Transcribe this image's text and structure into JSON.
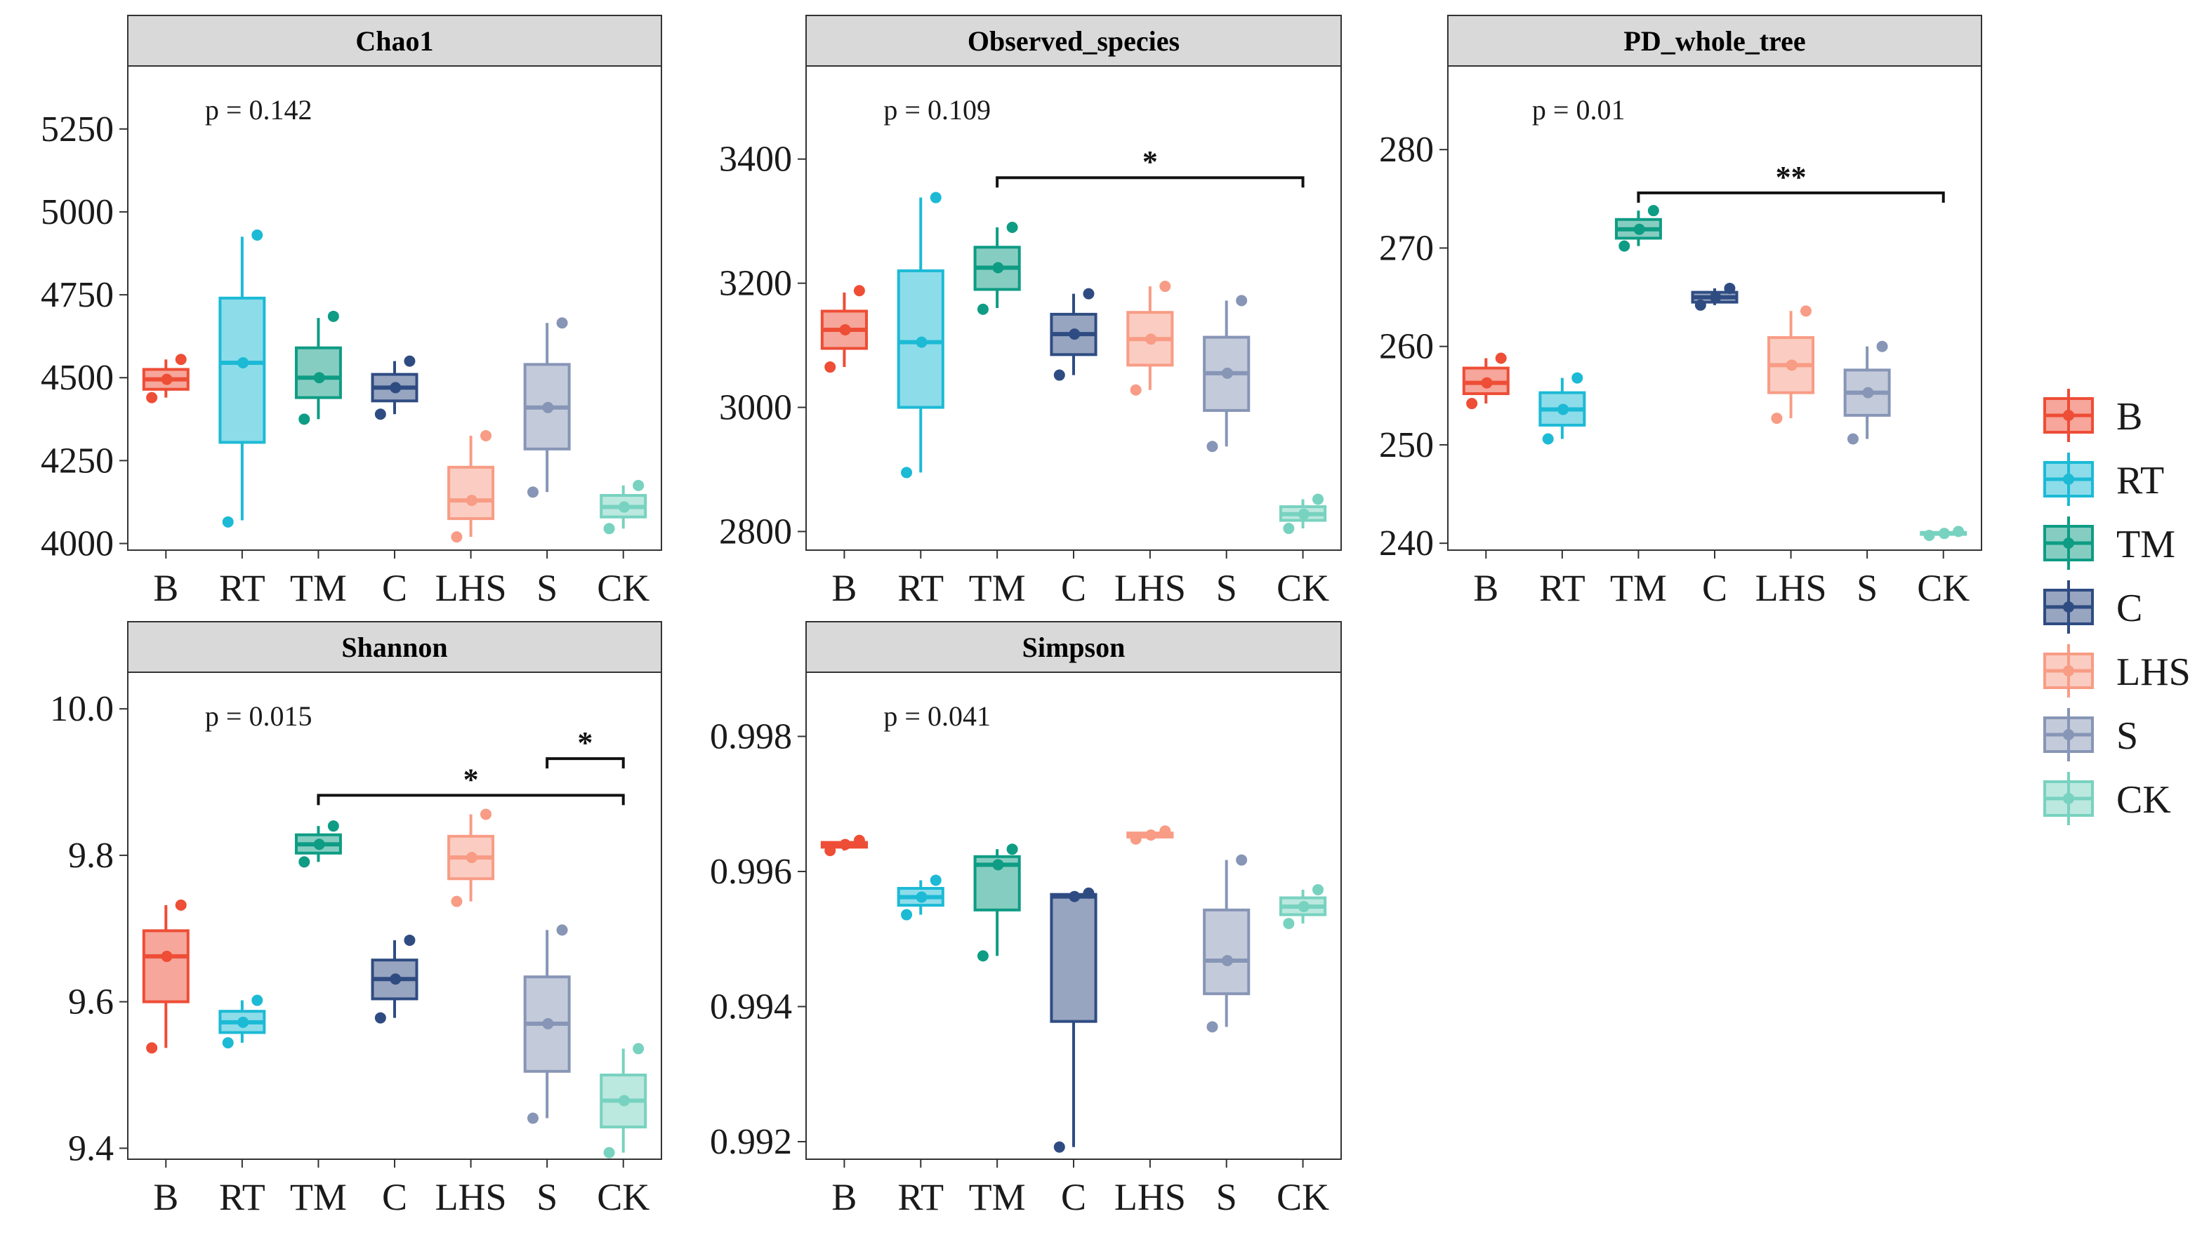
{
  "chart_data": [
    {
      "type": "box",
      "title": "Chao1",
      "categories": [
        "B",
        "RT",
        "TM",
        "C",
        "LHS",
        "S",
        "CK"
      ],
      "ylim": [
        3980,
        5440
      ],
      "yticks": [
        4000,
        4250,
        4500,
        4750,
        5000,
        5250
      ],
      "ytick_labels": [
        "4000",
        "4250",
        "4500",
        "4750",
        "5000",
        "5250"
      ],
      "annotation": "p = 0.142",
      "boxes": [
        {
          "min": 4440,
          "q1": 4465,
          "median": 4495,
          "q3": 4525,
          "max": 4555,
          "points": [
            4440,
            4495,
            4555
          ]
        },
        {
          "min": 4070,
          "q1": 4305,
          "median": 4545,
          "q3": 4740,
          "max": 4925,
          "points": [
            4065,
            4545,
            4930
          ]
        },
        {
          "min": 4375,
          "q1": 4440,
          "median": 4500,
          "q3": 4590,
          "max": 4680,
          "points": [
            4375,
            4500,
            4685
          ]
        },
        {
          "min": 4390,
          "q1": 4430,
          "median": 4470,
          "q3": 4510,
          "max": 4550,
          "points": [
            4390,
            4470,
            4550
          ]
        },
        {
          "min": 4020,
          "q1": 4075,
          "median": 4130,
          "q3": 4230,
          "max": 4325,
          "points": [
            4020,
            4130,
            4325
          ]
        },
        {
          "min": 4155,
          "q1": 4285,
          "median": 4410,
          "q3": 4540,
          "max": 4665,
          "points": [
            4155,
            4410,
            4665
          ]
        },
        {
          "min": 4045,
          "q1": 4080,
          "median": 4110,
          "q3": 4145,
          "max": 4175,
          "points": [
            4045,
            4110,
            4175
          ]
        }
      ],
      "brackets": []
    },
    {
      "type": "box",
      "title": "Observed_species",
      "categories": [
        "B",
        "RT",
        "TM",
        "C",
        "LHS",
        "S",
        "CK"
      ],
      "ylim": [
        2770,
        3550
      ],
      "yticks": [
        2800,
        3000,
        3200,
        3400
      ],
      "ytick_labels": [
        "2800",
        "3000",
        "3200",
        "3400"
      ],
      "annotation": "p = 0.109",
      "boxes": [
        {
          "min": 3065,
          "q1": 3095,
          "median": 3125,
          "q3": 3155,
          "max": 3185,
          "points": [
            3065,
            3125,
            3188
          ]
        },
        {
          "min": 2895,
          "q1": 3000,
          "median": 3105,
          "q3": 3220,
          "max": 3338,
          "points": [
            2895,
            3105,
            3338
          ]
        },
        {
          "min": 3160,
          "q1": 3190,
          "median": 3225,
          "q3": 3258,
          "max": 3290,
          "points": [
            3158,
            3225,
            3290
          ]
        },
        {
          "min": 3052,
          "q1": 3085,
          "median": 3118,
          "q3": 3150,
          "max": 3183,
          "points": [
            3052,
            3118,
            3183
          ]
        },
        {
          "min": 3028,
          "q1": 3068,
          "median": 3110,
          "q3": 3153,
          "max": 3195,
          "points": [
            3028,
            3110,
            3195
          ]
        },
        {
          "min": 2937,
          "q1": 2995,
          "median": 3055,
          "q3": 3113,
          "max": 3172,
          "points": [
            2937,
            3055,
            3172
          ]
        },
        {
          "min": 2805,
          "q1": 2818,
          "median": 2828,
          "q3": 2840,
          "max": 2852,
          "points": [
            2805,
            2828,
            2852
          ]
        }
      ],
      "brackets": [
        {
          "from": "TM",
          "to": "CK",
          "y": 3370,
          "label": "*"
        }
      ]
    },
    {
      "type": "box",
      "title": "PD_whole_tree",
      "categories": [
        "B",
        "RT",
        "TM",
        "C",
        "LHS",
        "S",
        "CK"
      ],
      "ylim": [
        239.3,
        288.5
      ],
      "yticks": [
        240,
        250,
        260,
        270,
        280
      ],
      "ytick_labels": [
        "240",
        "250",
        "260",
        "270",
        "280"
      ],
      "annotation": "p = 0.01",
      "boxes": [
        {
          "min": 254.2,
          "q1": 255.2,
          "median": 256.3,
          "q3": 257.8,
          "max": 258.8,
          "points": [
            254.2,
            256.3,
            258.8
          ]
        },
        {
          "min": 250.6,
          "q1": 252.0,
          "median": 253.6,
          "q3": 255.3,
          "max": 256.8,
          "points": [
            250.6,
            253.6,
            256.8
          ]
        },
        {
          "min": 270.2,
          "q1": 271.0,
          "median": 271.9,
          "q3": 272.9,
          "max": 273.8,
          "points": [
            270.2,
            271.9,
            273.8
          ]
        },
        {
          "min": 264.2,
          "q1": 264.5,
          "median": 265.0,
          "q3": 265.5,
          "max": 265.9,
          "points": [
            264.2,
            265.0,
            265.9
          ]
        },
        {
          "min": 252.7,
          "q1": 255.3,
          "median": 258.1,
          "q3": 260.9,
          "max": 263.6,
          "points": [
            252.7,
            258.1,
            263.6
          ]
        },
        {
          "min": 250.6,
          "q1": 253.0,
          "median": 255.3,
          "q3": 257.6,
          "max": 260.0,
          "points": [
            250.6,
            255.3,
            260.0
          ]
        },
        {
          "min": 240.8,
          "q1": 240.9,
          "median": 241.0,
          "q3": 241.1,
          "max": 241.2,
          "points": [
            240.8,
            241.0,
            241.2
          ]
        }
      ],
      "brackets": [
        {
          "from": "TM",
          "to": "CK",
          "y": 275.6,
          "label": "**"
        }
      ]
    },
    {
      "type": "box",
      "title": "Shannon",
      "categories": [
        "B",
        "RT",
        "TM",
        "C",
        "LHS",
        "S",
        "CK"
      ],
      "ylim": [
        9.385,
        10.05
      ],
      "yticks": [
        9.4,
        9.6,
        9.8,
        10.0
      ],
      "ytick_labels": [
        "9.4",
        "9.6",
        "9.8",
        "10.0"
      ],
      "annotation": "p = 0.015",
      "boxes": [
        {
          "min": 9.537,
          "q1": 9.6,
          "median": 9.662,
          "q3": 9.697,
          "max": 9.732,
          "points": [
            9.537,
            9.662,
            9.732
          ]
        },
        {
          "min": 9.544,
          "q1": 9.558,
          "median": 9.572,
          "q3": 9.587,
          "max": 9.602,
          "points": [
            9.544,
            9.572,
            9.602
          ]
        },
        {
          "min": 9.791,
          "q1": 9.803,
          "median": 9.815,
          "q3": 9.828,
          "max": 9.84,
          "points": [
            9.791,
            9.815,
            9.84
          ]
        },
        {
          "min": 9.578,
          "q1": 9.604,
          "median": 9.631,
          "q3": 9.657,
          "max": 9.684,
          "points": [
            9.578,
            9.631,
            9.684
          ]
        },
        {
          "min": 9.737,
          "q1": 9.768,
          "median": 9.797,
          "q3": 9.826,
          "max": 9.856,
          "points": [
            9.737,
            9.797,
            9.856
          ]
        },
        {
          "min": 9.441,
          "q1": 9.505,
          "median": 9.57,
          "q3": 9.634,
          "max": 9.698,
          "points": [
            9.441,
            9.57,
            9.698
          ]
        },
        {
          "min": 9.394,
          "q1": 9.429,
          "median": 9.465,
          "q3": 9.5,
          "max": 9.536,
          "points": [
            9.394,
            9.465,
            9.536
          ]
        }
      ],
      "brackets": [
        {
          "from": "S",
          "to": "CK",
          "y": 9.932,
          "label": "*"
        },
        {
          "from": "TM",
          "to": "CK",
          "y": 9.882,
          "label": "*"
        }
      ]
    },
    {
      "type": "box",
      "title": "Simpson",
      "categories": [
        "B",
        "RT",
        "TM",
        "C",
        "LHS",
        "S",
        "CK"
      ],
      "ylim": [
        0.99174,
        0.99895
      ],
      "yticks": [
        0.992,
        0.994,
        0.996,
        0.998
      ],
      "ytick_labels": [
        "0.992",
        "0.994",
        "0.996",
        "0.998"
      ],
      "annotation": "p = 0.041",
      "boxes": [
        {
          "min": 0.99631,
          "q1": 0.99636,
          "median": 0.9964,
          "q3": 0.99643,
          "max": 0.99646,
          "points": [
            0.99631,
            0.9964,
            0.99646
          ]
        },
        {
          "min": 0.99536,
          "q1": 0.9955,
          "median": 0.99562,
          "q3": 0.99575,
          "max": 0.99587,
          "points": [
            0.99536,
            0.99562,
            0.99587
          ]
        },
        {
          "min": 0.99475,
          "q1": 0.99543,
          "median": 0.9961,
          "q3": 0.99622,
          "max": 0.99633,
          "points": [
            0.99475,
            0.9961,
            0.99633
          ]
        },
        {
          "min": 0.99192,
          "q1": 0.99378,
          "median": 0.99563,
          "q3": 0.99566,
          "max": 0.99568,
          "points": [
            0.99192,
            0.99563,
            0.99568
          ]
        },
        {
          "min": 0.99648,
          "q1": 0.99651,
          "median": 0.99654,
          "q3": 0.99657,
          "max": 0.9966,
          "points": [
            0.99648,
            0.99654,
            0.9966
          ]
        },
        {
          "min": 0.9937,
          "q1": 0.99419,
          "median": 0.99468,
          "q3": 0.99543,
          "max": 0.99617,
          "points": [
            0.9937,
            0.99468,
            0.99617
          ]
        },
        {
          "min": 0.99523,
          "q1": 0.99536,
          "median": 0.99548,
          "q3": 0.99561,
          "max": 0.99573,
          "points": [
            0.99523,
            0.99548,
            0.99573
          ]
        }
      ],
      "brackets": []
    }
  ],
  "legend": {
    "placement": "right",
    "items": [
      {
        "label": "B",
        "color": "#ee4d36"
      },
      {
        "label": "RT",
        "color": "#1cbad5"
      },
      {
        "label": "TM",
        "color": "#0e9c84"
      },
      {
        "label": "C",
        "color": "#2f4c82"
      },
      {
        "label": "LHS",
        "color": "#f89c85"
      },
      {
        "label": "S",
        "color": "#8795b6"
      },
      {
        "label": "CK",
        "color": "#78d2c0"
      }
    ]
  },
  "colors": {
    "strip_background": "#d9d9d9",
    "panel_border": "#333333"
  }
}
